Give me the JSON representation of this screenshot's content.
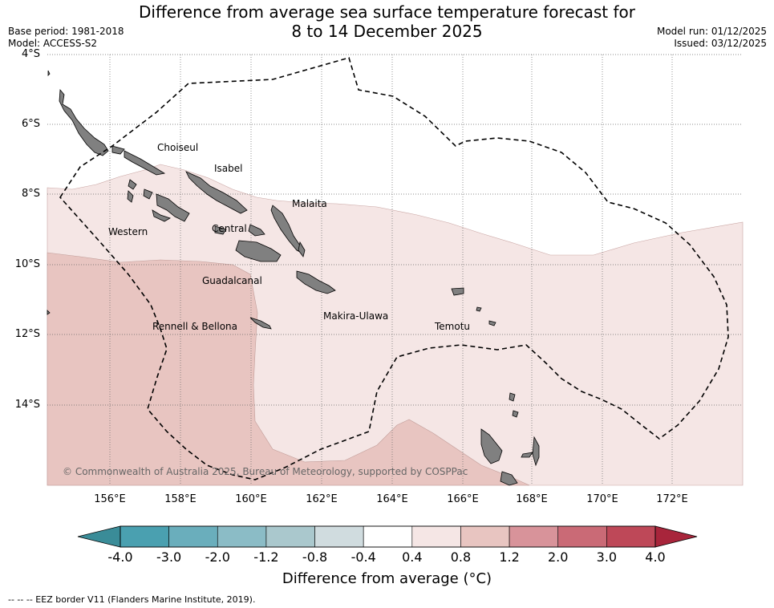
{
  "header": {
    "title_line1": "Difference from average sea surface temperature forecast for",
    "title_line2": "8 to 14 December 2025",
    "base_period": "Base period: 1981-2018",
    "model": "Model: ACCESS-S2",
    "model_run": "Model run: 01/12/2025",
    "issued": "Issued: 03/12/2025"
  },
  "map": {
    "lat_labels": [
      "4°S",
      "6°S",
      "8°S",
      "10°S",
      "12°S",
      "14°S"
    ],
    "lon_labels": [
      "156°E",
      "158°E",
      "160°E",
      "162°E",
      "164°E",
      "166°E",
      "168°E",
      "170°E",
      "172°E"
    ],
    "provinces": [
      "Choiseul",
      "Isabel",
      "Malaita",
      "Western",
      "Central",
      "Guadalcanal",
      "Rennell & Bellona",
      "Makira-Ulawa",
      "Temotu"
    ],
    "copyright": "© Commonwealth of Australia 2025, Bureau of Meteorology, supported by COSPPac",
    "anomaly_regions": [
      {
        "range": "0.4 to 0.8",
        "color": "#f5e6e5"
      },
      {
        "range": "0.8 to 1.2",
        "color": "#e8c5c1"
      }
    ]
  },
  "colorbar": {
    "title": "Difference from average (°C)",
    "ticks": [
      "-4.0",
      "-3.0",
      "-2.0",
      "-1.2",
      "-0.8",
      "-0.4",
      "0.4",
      "0.8",
      "1.2",
      "2.0",
      "3.0",
      "4.0"
    ],
    "colors": [
      "#4aa0b0",
      "#6aaebc",
      "#8bbcc6",
      "#aac8cd",
      "#d0dcdf",
      "#ffffff",
      "#f5e6e5",
      "#e8c5c1",
      "#d8939a",
      "#ca6a76",
      "#be4858"
    ],
    "low_extend_color": "#3a8c98",
    "high_extend_color": "#a8253b"
  },
  "legend_note": "-- -- -- EEZ border V11 (Flanders Marine Institute, 2019)."
}
